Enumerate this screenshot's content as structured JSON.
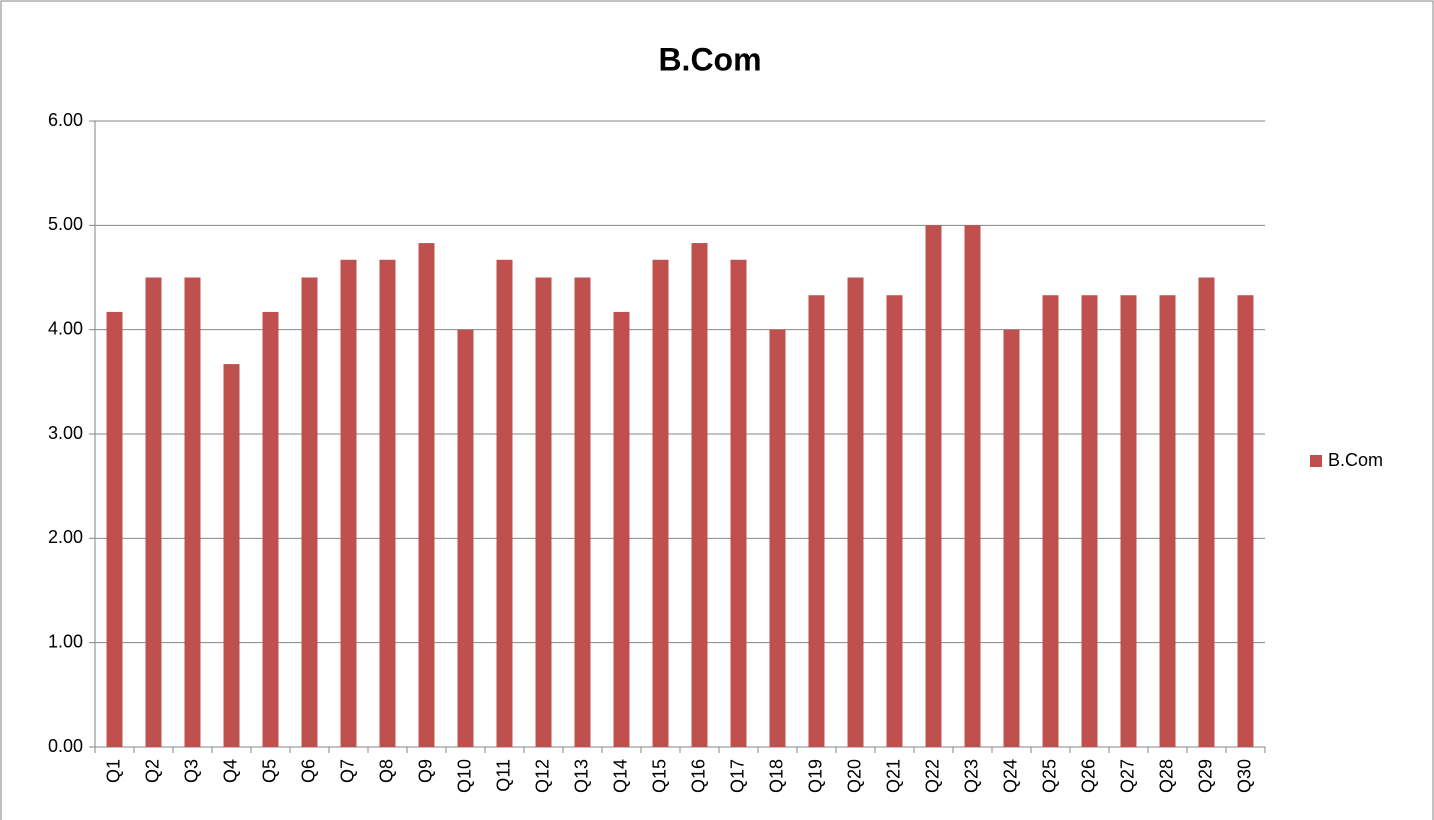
{
  "chart_data": {
    "type": "bar",
    "title": "B.Com",
    "categories": [
      "Q1",
      "Q2",
      "Q3",
      "Q4",
      "Q5",
      "Q6",
      "Q7",
      "Q8",
      "Q9",
      "Q10",
      "Q11",
      "Q12",
      "Q13",
      "Q14",
      "Q15",
      "Q16",
      "Q17",
      "Q18",
      "Q19",
      "Q20",
      "Q21",
      "Q22",
      "Q23",
      "Q24",
      "Q25",
      "Q26",
      "Q27",
      "Q28",
      "Q29",
      "Q30"
    ],
    "series": [
      {
        "name": "B.Com",
        "color": "#c0504d",
        "values": [
          4.17,
          4.5,
          4.5,
          3.67,
          4.17,
          4.5,
          4.67,
          4.67,
          4.83,
          4.0,
          4.67,
          4.5,
          4.5,
          4.17,
          4.67,
          4.83,
          4.67,
          4.0,
          4.33,
          4.5,
          4.33,
          5.0,
          5.0,
          4.0,
          4.33,
          4.33,
          4.33,
          4.33,
          4.5,
          4.33
        ]
      }
    ],
    "ylim": [
      0,
      6
    ],
    "yticks": [
      {
        "value": 0,
        "label": "0.00"
      },
      {
        "value": 1,
        "label": "1.00"
      },
      {
        "value": 2,
        "label": "2.00"
      },
      {
        "value": 3,
        "label": "3.00"
      },
      {
        "value": 4,
        "label": "4.00"
      },
      {
        "value": 5,
        "label": "5.00"
      },
      {
        "value": 6,
        "label": "6.00"
      }
    ],
    "grid": true,
    "legend": "right"
  }
}
